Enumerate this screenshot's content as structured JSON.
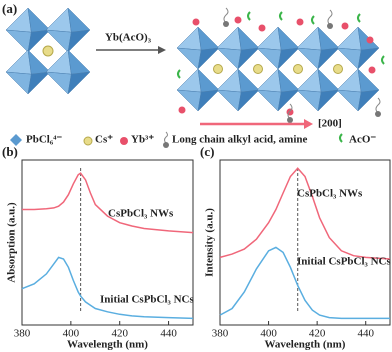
{
  "panel_a": {
    "label": "(a)",
    "reagent": "Yb(AcO)₃",
    "direction": "[200]",
    "legend": [
      "PbCl₆⁴⁻",
      "Cs⁺",
      "Yb³⁺",
      "Long chain alkyl acid, amine",
      "AcO⁻"
    ]
  },
  "chart_data": [
    {
      "type": "line",
      "panel_label": "(b)",
      "x_label": "Wavelength (nm)",
      "y_label": "Absorption (a.u.)",
      "x": [
        380,
        385,
        390,
        393,
        395,
        397,
        399,
        401,
        403,
        404,
        406,
        408,
        410,
        415,
        420,
        425,
        430,
        440,
        450
      ],
      "xlim": [
        380,
        450
      ],
      "xticks": [
        380,
        400,
        420,
        440
      ],
      "ylim": [
        0,
        100
      ],
      "reference_line_x": 404,
      "series": [
        {
          "name": "CsPbCl₃ NWs",
          "color": "#f0677a",
          "values": [
            70,
            70,
            70.5,
            71,
            72,
            74.5,
            79,
            85.5,
            91,
            92,
            88,
            80,
            73,
            66,
            62,
            60,
            58.5,
            57,
            56
          ]
        },
        {
          "name": "Initial CsPbCl₃ NCs",
          "color": "#5aaee0",
          "values": [
            22,
            25,
            31,
            37,
            41,
            40,
            35,
            27,
            20,
            17.5,
            14,
            12,
            10,
            8,
            6.5,
            5.5,
            5,
            4.5,
            4
          ]
        }
      ]
    },
    {
      "type": "line",
      "panel_label": "(c)",
      "x_label": "Wavelength (nm)",
      "y_label": "Intensity (a.u.)",
      "x": [
        380,
        385,
        390,
        395,
        400,
        403,
        406,
        409,
        412,
        415,
        418,
        421,
        425,
        430,
        435,
        440,
        450
      ],
      "xlim": [
        380,
        450
      ],
      "xticks": [
        380,
        400,
        420,
        440
      ],
      "ylim": [
        0,
        100
      ],
      "reference_line_x": 412,
      "series": [
        {
          "name": "CsPbCl₃ NWs",
          "color": "#f0677a",
          "values": [
            41,
            43,
            46,
            52,
            62,
            70,
            80,
            90,
            95,
            90,
            78,
            65,
            53,
            45,
            42,
            41,
            40
          ]
        },
        {
          "name": "Initial CsPbCl₃ NCs",
          "color": "#5aaee0",
          "values": [
            6,
            10,
            20,
            34,
            45,
            47,
            44,
            35,
            24,
            15,
            9,
            6,
            4.5,
            4,
            4,
            4,
            4
          ]
        }
      ]
    }
  ]
}
